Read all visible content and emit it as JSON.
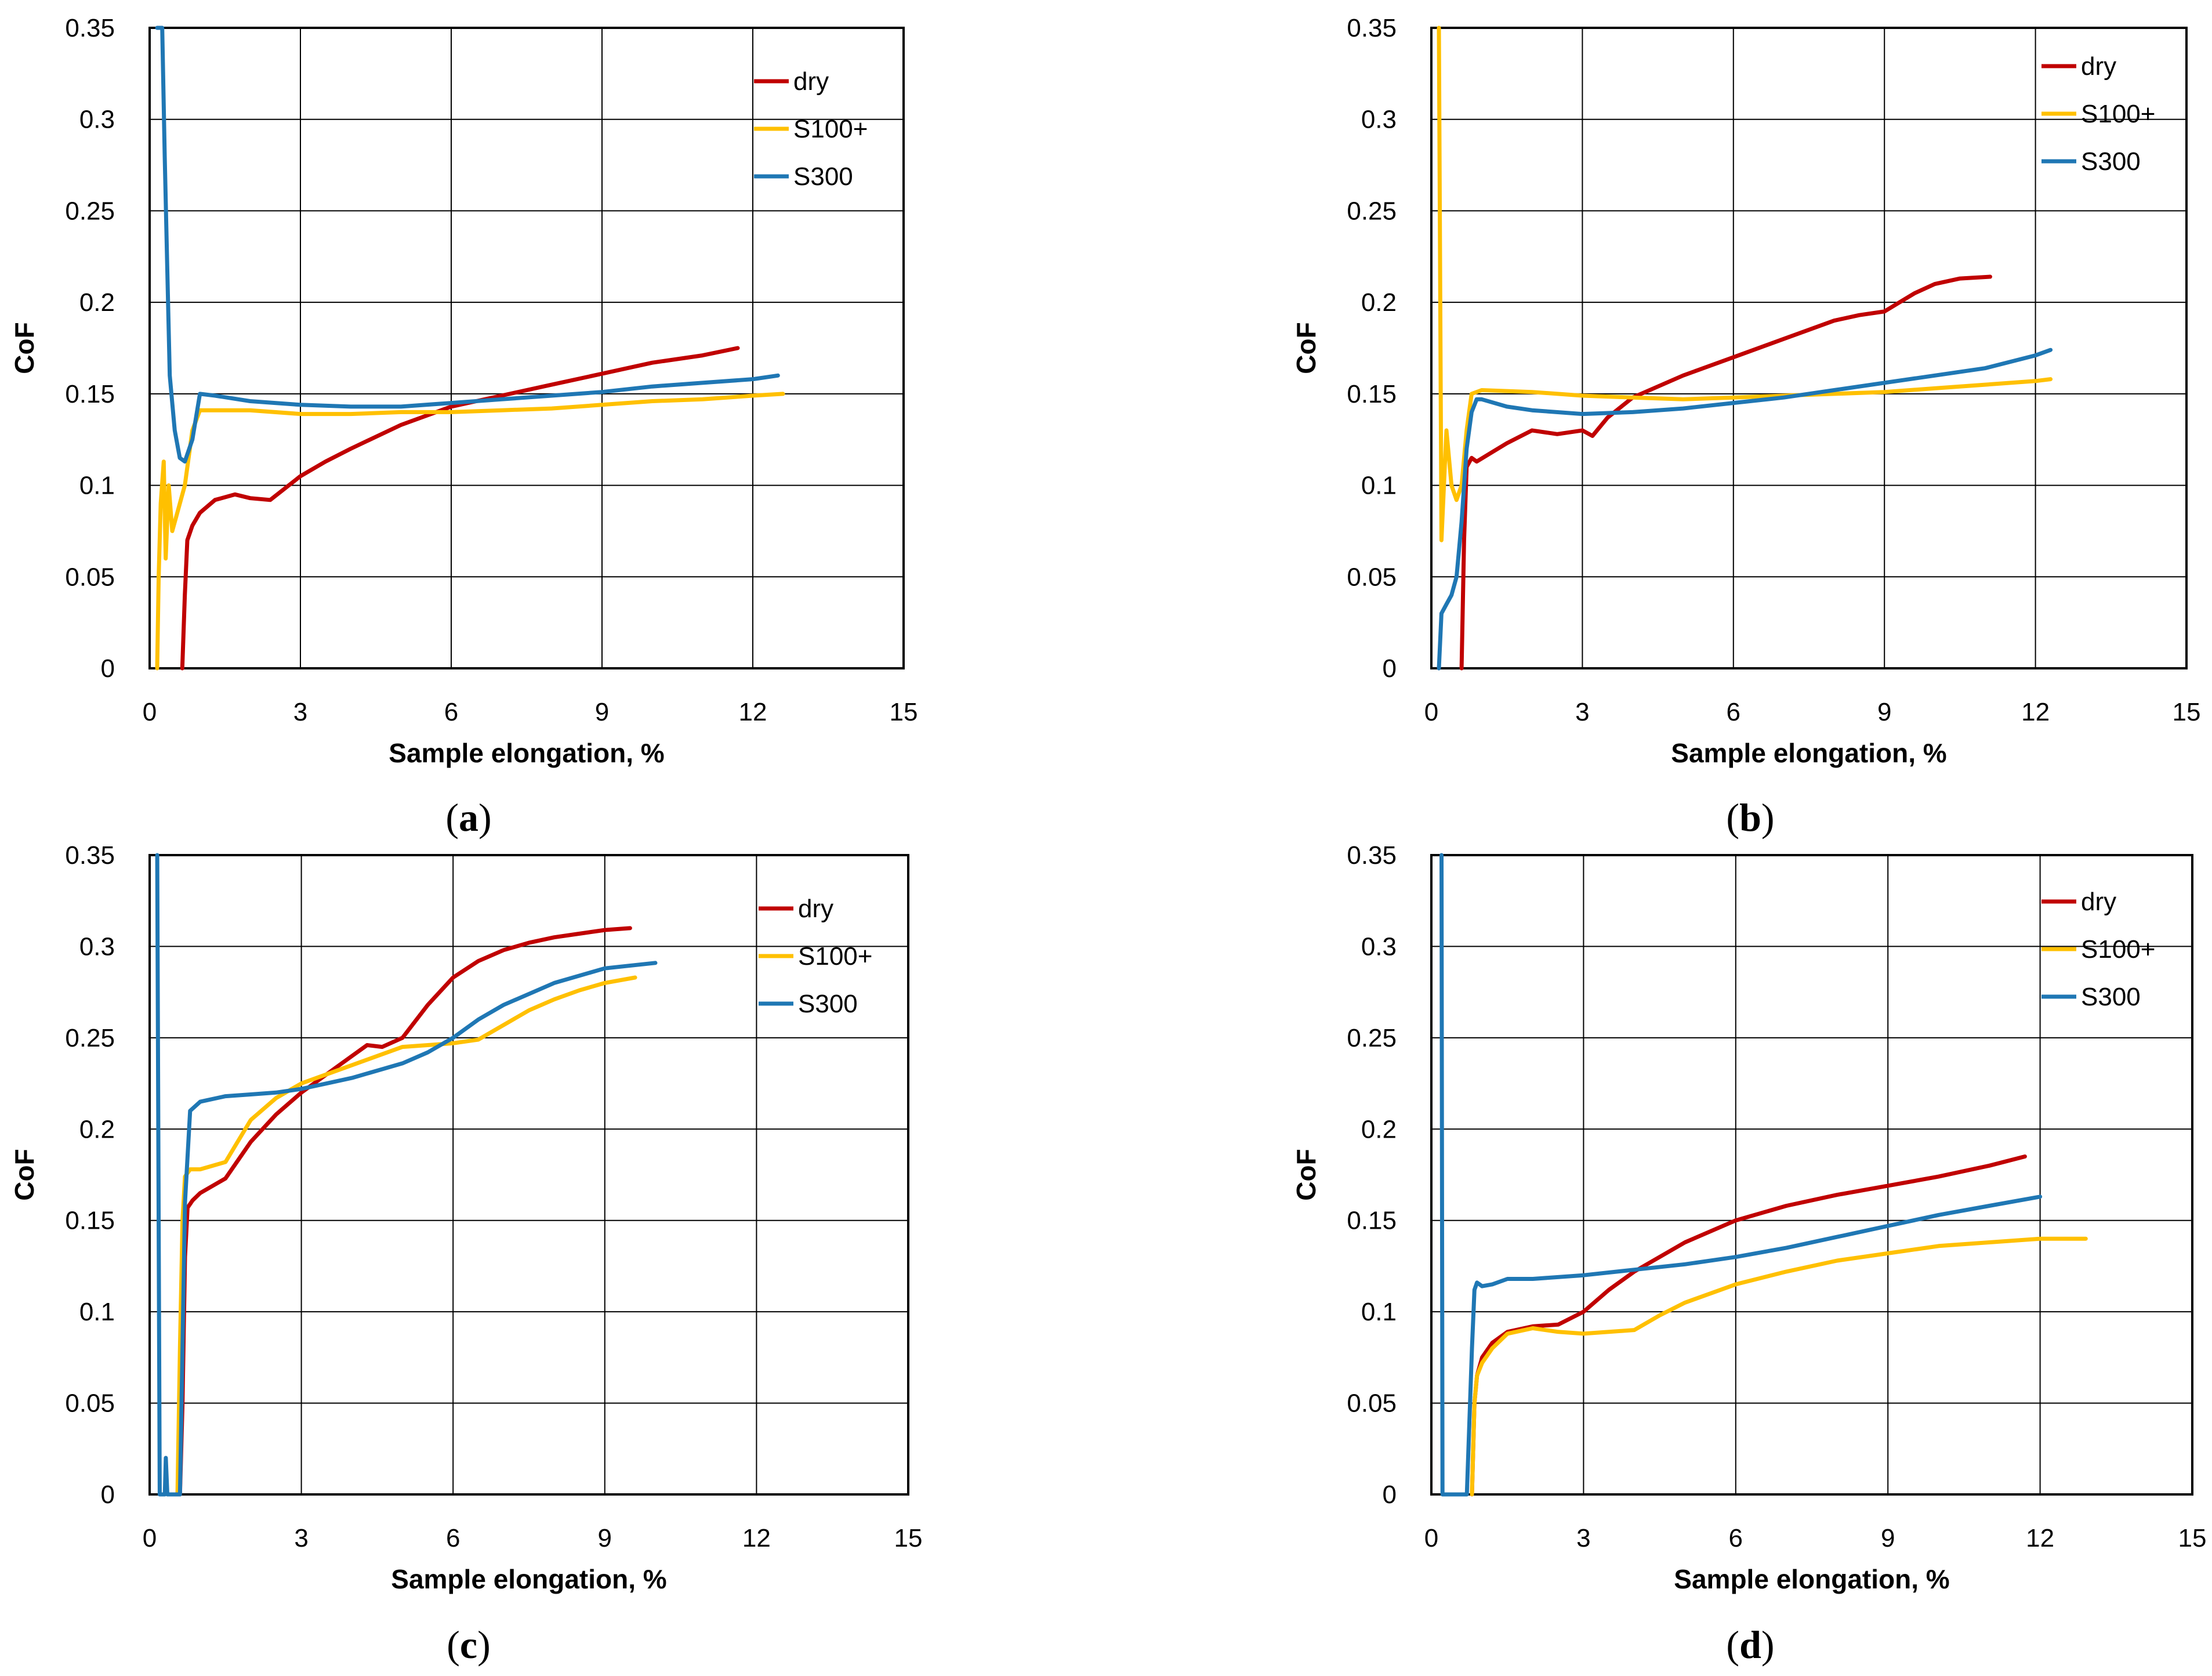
{
  "chart_data": [
    {
      "panel": "a",
      "type": "line",
      "caption": "(a)",
      "caption_letter": "a",
      "xlabel": "Sample elongation, %",
      "ylabel": "CoF",
      "xlim": [
        0,
        15
      ],
      "ylim": [
        0,
        0.35
      ],
      "xticks": [
        0,
        3,
        6,
        9,
        12,
        15
      ],
      "yticks": [
        0,
        0.05,
        0.1,
        0.15,
        0.2,
        0.25,
        0.3,
        0.35
      ],
      "xtick_labels": [
        "0",
        "3",
        "6",
        "9",
        "12",
        "15"
      ],
      "ytick_labels": [
        "0",
        "0.05",
        "0.1",
        "0.15",
        "0.2",
        "0.25",
        "0.3",
        "0.35"
      ],
      "grid": true,
      "legend_position": "top-right",
      "series": [
        {
          "name": "dry",
          "color": "#c00000",
          "x": [
            0.65,
            0.7,
            0.75,
            0.85,
            1.0,
            1.3,
            1.7,
            2.0,
            2.4,
            3.0,
            3.5,
            4.0,
            5.0,
            6.0,
            7.0,
            8.0,
            9.0,
            10.0,
            11.0,
            11.7
          ],
          "y": [
            0.0,
            0.04,
            0.07,
            0.078,
            0.085,
            0.092,
            0.095,
            0.093,
            0.092,
            0.105,
            0.113,
            0.12,
            0.133,
            0.143,
            0.149,
            0.155,
            0.161,
            0.167,
            0.171,
            0.175
          ]
        },
        {
          "name": "S100+",
          "color": "#ffc000",
          "x": [
            0.15,
            0.18,
            0.22,
            0.28,
            0.32,
            0.38,
            0.45,
            0.55,
            0.7,
            0.85,
            1.0,
            2.0,
            3.0,
            4.0,
            5.0,
            6.0,
            7.0,
            8.0,
            9.0,
            10.0,
            11.0,
            12.0,
            12.6
          ],
          "y": [
            0.0,
            0.05,
            0.09,
            0.113,
            0.06,
            0.1,
            0.075,
            0.085,
            0.1,
            0.13,
            0.141,
            0.141,
            0.139,
            0.139,
            0.14,
            0.14,
            0.141,
            0.142,
            0.144,
            0.146,
            0.147,
            0.149,
            0.15
          ]
        },
        {
          "name": "S300",
          "color": "#1f77b4",
          "x": [
            0.15,
            0.25,
            0.3,
            0.35,
            0.4,
            0.5,
            0.6,
            0.7,
            0.85,
            1.0,
            1.3,
            2.0,
            3.0,
            4.0,
            5.0,
            6.0,
            7.0,
            8.0,
            9.0,
            10.0,
            11.0,
            12.0,
            12.5
          ],
          "y": [
            0.35,
            0.35,
            0.28,
            0.22,
            0.16,
            0.13,
            0.115,
            0.113,
            0.125,
            0.15,
            0.149,
            0.146,
            0.144,
            0.143,
            0.143,
            0.145,
            0.147,
            0.149,
            0.151,
            0.154,
            0.156,
            0.158,
            0.16
          ]
        }
      ]
    },
    {
      "panel": "b",
      "type": "line",
      "caption": "(b)",
      "caption_letter": "b",
      "xlabel": "Sample elongation, %",
      "ylabel": "CoF",
      "xlim": [
        0,
        15
      ],
      "ylim": [
        0,
        0.35
      ],
      "xticks": [
        0,
        3,
        6,
        9,
        12,
        15
      ],
      "yticks": [
        0,
        0.05,
        0.1,
        0.15,
        0.2,
        0.25,
        0.3,
        0.35
      ],
      "xtick_labels": [
        "0",
        "3",
        "6",
        "9",
        "12",
        "15"
      ],
      "ytick_labels": [
        "0",
        "0.05",
        "0.1",
        "0.15",
        "0.2",
        "0.25",
        "0.3",
        "0.35"
      ],
      "grid": true,
      "legend_position": "top-right",
      "series": [
        {
          "name": "dry",
          "color": "#c00000",
          "x": [
            0.6,
            0.65,
            0.7,
            0.8,
            0.9,
            1.2,
            1.5,
            2.0,
            2.5,
            3.0,
            3.2,
            3.5,
            4.0,
            5.0,
            6.0,
            7.0,
            8.0,
            8.5,
            9.0,
            9.3,
            9.6,
            10.0,
            10.5,
            11.1
          ],
          "y": [
            0.0,
            0.07,
            0.11,
            0.115,
            0.113,
            0.118,
            0.123,
            0.13,
            0.128,
            0.13,
            0.127,
            0.137,
            0.148,
            0.16,
            0.17,
            0.18,
            0.19,
            0.193,
            0.195,
            0.2,
            0.205,
            0.21,
            0.213,
            0.214
          ]
        },
        {
          "name": "S100+",
          "color": "#ffc000",
          "x": [
            0.15,
            0.2,
            0.3,
            0.4,
            0.5,
            0.6,
            0.7,
            0.8,
            1.0,
            2.0,
            3.0,
            4.0,
            5.0,
            6.0,
            7.0,
            8.0,
            9.0,
            10.0,
            11.0,
            12.0,
            12.3
          ],
          "y": [
            0.35,
            0.07,
            0.13,
            0.1,
            0.092,
            0.1,
            0.13,
            0.15,
            0.152,
            0.151,
            0.149,
            0.148,
            0.147,
            0.148,
            0.149,
            0.15,
            0.151,
            0.153,
            0.155,
            0.157,
            0.158
          ]
        },
        {
          "name": "S300",
          "color": "#1f77b4",
          "x": [
            0.15,
            0.2,
            0.3,
            0.4,
            0.5,
            0.6,
            0.7,
            0.8,
            0.9,
            1.0,
            1.5,
            2.0,
            3.0,
            4.0,
            5.0,
            6.0,
            7.0,
            8.0,
            9.0,
            10.0,
            11.0,
            12.0,
            12.3
          ],
          "y": [
            0.0,
            0.03,
            0.035,
            0.04,
            0.05,
            0.08,
            0.12,
            0.14,
            0.147,
            0.147,
            0.143,
            0.141,
            0.139,
            0.14,
            0.142,
            0.145,
            0.148,
            0.152,
            0.156,
            0.16,
            0.164,
            0.171,
            0.174
          ]
        }
      ]
    },
    {
      "panel": "c",
      "type": "line",
      "caption": "(c)",
      "caption_letter": "c",
      "xlabel": "Sample elongation, %",
      "ylabel": "CoF",
      "xlim": [
        0,
        15
      ],
      "ylim": [
        0,
        0.35
      ],
      "xticks": [
        0,
        3,
        6,
        9,
        12,
        15
      ],
      "yticks": [
        0,
        0.05,
        0.1,
        0.15,
        0.2,
        0.25,
        0.3,
        0.35
      ],
      "xtick_labels": [
        "0",
        "3",
        "6",
        "9",
        "12",
        "15"
      ],
      "ytick_labels": [
        "0",
        "0.05",
        "0.1",
        "0.15",
        "0.2",
        "0.25",
        "0.3",
        "0.35"
      ],
      "grid": true,
      "legend_position": "top-right",
      "series": [
        {
          "name": "dry",
          "color": "#c00000",
          "x": [
            0.6,
            0.65,
            0.7,
            0.75,
            0.85,
            1.0,
            1.5,
            2.0,
            2.5,
            3.0,
            3.5,
            4.0,
            4.3,
            4.6,
            5.0,
            5.5,
            6.0,
            6.5,
            7.0,
            7.5,
            8.0,
            8.5,
            9.0,
            9.5
          ],
          "y": [
            0.0,
            0.05,
            0.13,
            0.157,
            0.161,
            0.165,
            0.173,
            0.193,
            0.208,
            0.22,
            0.23,
            0.24,
            0.246,
            0.245,
            0.25,
            0.268,
            0.283,
            0.292,
            0.298,
            0.302,
            0.305,
            0.307,
            0.309,
            0.31
          ]
        },
        {
          "name": "S100+",
          "color": "#ffc000",
          "x": [
            0.55,
            0.6,
            0.65,
            0.7,
            0.8,
            1.0,
            1.5,
            2.0,
            2.5,
            3.0,
            3.5,
            4.0,
            4.5,
            5.0,
            5.5,
            6.0,
            6.5,
            7.0,
            7.5,
            8.0,
            8.5,
            9.0,
            9.6
          ],
          "y": [
            0.0,
            0.08,
            0.15,
            0.174,
            0.178,
            0.178,
            0.182,
            0.205,
            0.217,
            0.225,
            0.23,
            0.235,
            0.24,
            0.245,
            0.246,
            0.247,
            0.249,
            0.257,
            0.265,
            0.271,
            0.276,
            0.28,
            0.283
          ]
        },
        {
          "name": "S300",
          "color": "#1f77b4",
          "x": [
            0.15,
            0.2,
            0.3,
            0.32,
            0.35,
            0.4,
            0.5,
            0.6,
            0.7,
            0.8,
            1.0,
            1.5,
            2.0,
            2.5,
            3.0,
            3.5,
            4.0,
            4.5,
            5.0,
            5.5,
            6.0,
            6.5,
            7.0,
            8.0,
            9.0,
            10.0
          ],
          "y": [
            0.35,
            0.0,
            0.0,
            0.02,
            0.0,
            0.0,
            0.0,
            0.0,
            0.16,
            0.21,
            0.215,
            0.218,
            0.219,
            0.22,
            0.222,
            0.225,
            0.228,
            0.232,
            0.236,
            0.242,
            0.25,
            0.26,
            0.268,
            0.28,
            0.288,
            0.291
          ]
        }
      ]
    },
    {
      "panel": "d",
      "type": "line",
      "caption": "(d)",
      "caption_letter": "d",
      "xlabel": "Sample elongation, %",
      "ylabel": "CoF",
      "xlim": [
        0,
        15
      ],
      "ylim": [
        0,
        0.35
      ],
      "xticks": [
        0,
        3,
        6,
        9,
        12,
        15
      ],
      "yticks": [
        0,
        0.05,
        0.1,
        0.15,
        0.2,
        0.25,
        0.3,
        0.35
      ],
      "xtick_labels": [
        "0",
        "3",
        "6",
        "9",
        "12",
        "15"
      ],
      "ytick_labels": [
        "0",
        "0.05",
        "0.1",
        "0.15",
        "0.2",
        "0.25",
        "0.3",
        "0.35"
      ],
      "grid": true,
      "legend_position": "top-right",
      "series": [
        {
          "name": "dry",
          "color": "#c00000",
          "x": [
            0.8,
            0.85,
            0.9,
            1.0,
            1.2,
            1.5,
            2.0,
            2.5,
            3.0,
            3.5,
            4.0,
            5.0,
            6.0,
            7.0,
            8.0,
            9.0,
            10.0,
            11.0,
            11.7
          ],
          "y": [
            0.0,
            0.05,
            0.065,
            0.075,
            0.083,
            0.089,
            0.092,
            0.093,
            0.1,
            0.112,
            0.122,
            0.138,
            0.15,
            0.158,
            0.164,
            0.169,
            0.174,
            0.18,
            0.185
          ]
        },
        {
          "name": "S100+",
          "color": "#ffc000",
          "x": [
            0.8,
            0.85,
            0.9,
            1.0,
            1.2,
            1.5,
            2.0,
            2.5,
            3.0,
            3.5,
            4.0,
            4.5,
            5.0,
            6.0,
            7.0,
            8.0,
            9.0,
            10.0,
            11.0,
            12.0,
            12.9
          ],
          "y": [
            0.0,
            0.05,
            0.065,
            0.072,
            0.08,
            0.088,
            0.091,
            0.089,
            0.088,
            0.089,
            0.09,
            0.098,
            0.105,
            0.115,
            0.122,
            0.128,
            0.132,
            0.136,
            0.138,
            0.14,
            0.14
          ]
        },
        {
          "name": "S300",
          "color": "#1f77b4",
          "x": [
            0.2,
            0.22,
            0.6,
            0.7,
            0.8,
            0.85,
            0.9,
            1.0,
            1.2,
            1.5,
            2.0,
            3.0,
            4.0,
            5.0,
            6.0,
            7.0,
            8.0,
            9.0,
            10.0,
            11.0,
            12.0
          ],
          "y": [
            0.35,
            0.0,
            0.0,
            0.0,
            0.08,
            0.112,
            0.116,
            0.114,
            0.115,
            0.118,
            0.118,
            0.12,
            0.123,
            0.126,
            0.13,
            0.135,
            0.141,
            0.147,
            0.153,
            0.158,
            0.163
          ]
        }
      ]
    }
  ]
}
